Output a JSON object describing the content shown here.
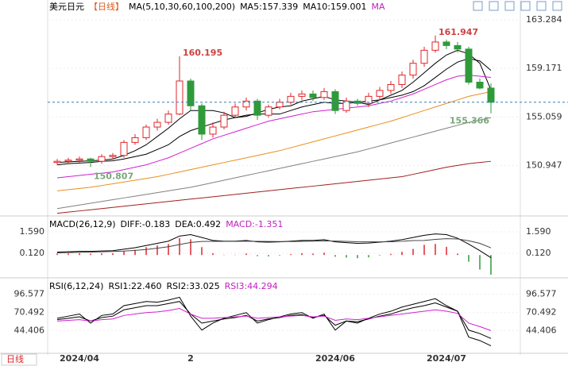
{
  "chart_data": [
    {
      "type": "candlestick",
      "legend": [
        {
          "text": "美元日元",
          "color": "#000000"
        },
        {
          "text": "【日线】",
          "color": "#e05a1a"
        },
        {
          "text": "MA(5,10,30,60,100,200)",
          "color": "#000000"
        },
        {
          "text": "MA5:157.339",
          "color": "#000000"
        },
        {
          "text": "MA10:159.001",
          "color": "#000000"
        },
        {
          "text": "MA",
          "color": "#c020c0"
        }
      ],
      "categories": [
        null,
        null,
        "2024/04",
        null,
        null,
        null,
        null,
        null,
        null,
        null,
        null,
        null,
        "2",
        null,
        null,
        null,
        null,
        null,
        null,
        null,
        null,
        null,
        null,
        null,
        null,
        "2024/06",
        null,
        null,
        null,
        null,
        null,
        null,
        null,
        null,
        null,
        "2024/07",
        null,
        null,
        null,
        null
      ],
      "open": [
        151.2,
        151.3,
        151.4,
        151.5,
        151.3,
        151.7,
        151.8,
        152.9,
        153.3,
        154.2,
        154.6,
        155.3,
        158.1,
        156.0,
        153.6,
        154.2,
        155.2,
        155.9,
        156.4,
        155.2,
        155.9,
        156.3,
        156.8,
        157.0,
        156.7,
        157.2,
        155.6,
        156.4,
        156.2,
        156.8,
        157.3,
        157.8,
        158.6,
        159.6,
        160.7,
        161.4,
        161.1,
        160.8,
        158.0,
        157.5
      ],
      "high": [
        151.5,
        151.6,
        151.7,
        151.6,
        151.9,
        152.0,
        153.1,
        153.6,
        154.4,
        154.9,
        155.6,
        160.195,
        158.3,
        156.2,
        154.6,
        155.5,
        156.2,
        156.7,
        156.6,
        156.1,
        156.6,
        157.1,
        157.3,
        157.3,
        157.5,
        157.4,
        156.7,
        156.6,
        157.1,
        157.6,
        158.1,
        158.9,
        159.9,
        161.0,
        161.947,
        161.6,
        161.4,
        161.0,
        158.3,
        157.9
      ],
      "low": [
        151.0,
        151.1,
        151.2,
        150.807,
        151.1,
        151.5,
        151.6,
        152.7,
        153.1,
        153.9,
        154.4,
        155.2,
        155.6,
        153.1,
        153.3,
        154.0,
        155.0,
        155.6,
        154.8,
        155.0,
        155.7,
        156.1,
        156.5,
        156.4,
        156.5,
        155.3,
        155.4,
        156.0,
        155.9,
        156.5,
        157.0,
        157.5,
        158.3,
        159.3,
        160.5,
        160.8,
        160.5,
        157.8,
        157.4,
        155.366
      ],
      "close": [
        151.3,
        151.4,
        151.5,
        151.3,
        151.7,
        151.8,
        152.9,
        153.3,
        154.2,
        154.6,
        155.3,
        158.1,
        156.0,
        153.6,
        154.2,
        155.2,
        155.9,
        156.4,
        155.2,
        155.9,
        156.3,
        156.8,
        157.0,
        156.7,
        157.2,
        155.6,
        156.4,
        156.2,
        156.8,
        157.3,
        157.8,
        158.6,
        159.6,
        160.7,
        161.4,
        161.1,
        160.8,
        158.0,
        157.5,
        156.3
      ],
      "up_color": "#e0262a",
      "down_color": "#2f9a3a",
      "price_line": 156.3,
      "price_line_color": "#3a7fb0",
      "series": [
        {
          "color": "#000000",
          "values": [
            151.2,
            151.25,
            151.3,
            151.35,
            151.4,
            151.5,
            151.8,
            152.2,
            152.7,
            153.4,
            154.1,
            154.9,
            155.6,
            155.6,
            155.6,
            155.4,
            155.0,
            155.1,
            155.4,
            155.7,
            155.9,
            156.0,
            156.4,
            156.6,
            156.8,
            156.5,
            156.4,
            156.3,
            156.1,
            156.5,
            156.9,
            157.3,
            158.0,
            158.8,
            159.6,
            160.3,
            160.7,
            160.4,
            159.6,
            157.339
          ]
        },
        {
          "color": "#000000",
          "values": [
            151.0,
            151.1,
            151.15,
            151.2,
            151.3,
            151.35,
            151.5,
            151.7,
            151.9,
            152.3,
            152.7,
            153.4,
            153.9,
            154.2,
            154.5,
            154.8,
            155.0,
            155.2,
            155.3,
            155.3,
            155.3,
            155.6,
            155.9,
            156.1,
            156.3,
            156.2,
            156.2,
            156.3,
            156.4,
            156.5,
            156.7,
            156.9,
            157.2,
            157.7,
            158.4,
            159.1,
            159.7,
            160.0,
            159.8,
            159.001
          ]
        },
        {
          "color": "#d020d0",
          "values": [
            149.9,
            150.0,
            150.1,
            150.2,
            150.3,
            150.4,
            150.6,
            150.8,
            151.0,
            151.3,
            151.6,
            152.0,
            152.4,
            152.8,
            153.2,
            153.5,
            153.8,
            154.1,
            154.4,
            154.7,
            154.9,
            155.1,
            155.3,
            155.5,
            155.6,
            155.7,
            155.8,
            155.9,
            156.0,
            156.2,
            156.4,
            156.7,
            157.0,
            157.4,
            157.8,
            158.2,
            158.5,
            158.6,
            158.5,
            158.4
          ]
        },
        {
          "color": "#e8901a",
          "values": [
            148.8,
            148.9,
            149.0,
            149.1,
            149.25,
            149.4,
            149.55,
            149.7,
            149.85,
            150.0,
            150.2,
            150.4,
            150.6,
            150.8,
            151.0,
            151.2,
            151.4,
            151.6,
            151.8,
            152.0,
            152.2,
            152.45,
            152.7,
            152.95,
            153.2,
            153.45,
            153.7,
            153.95,
            154.2,
            154.45,
            154.7,
            155.0,
            155.3,
            155.6,
            155.9,
            156.2,
            156.5,
            156.8,
            157.0,
            157.2
          ]
        },
        {
          "color": "#808080",
          "values": [
            147.3,
            147.45,
            147.6,
            147.75,
            147.9,
            148.05,
            148.2,
            148.35,
            148.5,
            148.65,
            148.8,
            148.95,
            149.1,
            149.3,
            149.5,
            149.7,
            149.9,
            150.1,
            150.3,
            150.5,
            150.7,
            150.9,
            151.1,
            151.3,
            151.5,
            151.7,
            151.9,
            152.1,
            152.35,
            152.6,
            152.85,
            153.1,
            153.35,
            153.6,
            153.85,
            154.1,
            154.35,
            154.6,
            154.8,
            155.0
          ]
        },
        {
          "color": "#a02020",
          "values": [
            146.9,
            147.0,
            147.1,
            147.2,
            147.3,
            147.4,
            147.5,
            147.6,
            147.7,
            147.8,
            147.9,
            148.0,
            148.1,
            148.2,
            148.3,
            148.4,
            148.5,
            148.6,
            148.7,
            148.8,
            148.9,
            149.0,
            149.1,
            149.2,
            149.3,
            149.4,
            149.5,
            149.6,
            149.7,
            149.8,
            149.9,
            150.0,
            150.2,
            150.4,
            150.6,
            150.8,
            150.95,
            151.1,
            151.2,
            151.3
          ]
        }
      ],
      "annotations": [
        {
          "value": 160.195,
          "color": "#d04040"
        },
        {
          "value": 150.807,
          "color": "#7aa67a"
        },
        {
          "value": 161.947,
          "color": "#d04040"
        },
        {
          "value": 155.366,
          "color": "#7aa67a"
        }
      ],
      "ylim": [
        146.81,
        163.88
      ],
      "yticks": [
        163.284,
        159.171,
        155.059,
        150.947
      ],
      "left_labels": false
    },
    {
      "type": "macd",
      "legend": [
        {
          "text": "MACD(26,12,9)",
          "color": "#000000"
        },
        {
          "text": "DIFF:-0.183",
          "color": "#000000"
        },
        {
          "text": "DEA:0.492",
          "color": "#000000"
        },
        {
          "text": "MACD:-1.351",
          "color": "#c020c0"
        }
      ],
      "series": [
        {
          "color": "#000000",
          "values": [
            0.2,
            0.22,
            0.25,
            0.25,
            0.28,
            0.3,
            0.4,
            0.5,
            0.65,
            0.8,
            0.95,
            1.3,
            1.4,
            1.2,
            1.0,
            0.95,
            0.95,
            1.0,
            0.9,
            0.88,
            0.9,
            0.95,
            1.0,
            1.0,
            1.05,
            0.9,
            0.85,
            0.8,
            0.82,
            0.88,
            0.95,
            1.05,
            1.2,
            1.35,
            1.45,
            1.4,
            1.15,
            0.75,
            0.3,
            -0.183
          ]
        },
        {
          "color": "#444444",
          "values": [
            0.15,
            0.17,
            0.19,
            0.2,
            0.22,
            0.24,
            0.27,
            0.32,
            0.38,
            0.47,
            0.57,
            0.72,
            0.86,
            0.93,
            0.94,
            0.94,
            0.94,
            0.95,
            0.94,
            0.93,
            0.92,
            0.92,
            0.94,
            0.95,
            0.97,
            0.96,
            0.94,
            0.91,
            0.9,
            0.9,
            0.91,
            0.94,
            0.99,
            1.0,
            1.07,
            1.12,
            1.1,
            0.98,
            0.8,
            0.492
          ]
        }
      ],
      "histogram": [
        0.1,
        0.1,
        0.12,
        0.1,
        0.12,
        0.12,
        0.26,
        0.36,
        0.54,
        0.66,
        0.76,
        1.16,
        1.08,
        0.54,
        0.12,
        0.02,
        0.02,
        0.1,
        -0.08,
        -0.1,
        -0.04,
        0.06,
        0.12,
        0.1,
        0.16,
        -0.12,
        -0.18,
        -0.22,
        -0.16,
        -0.04,
        0.08,
        0.22,
        0.42,
        0.7,
        0.76,
        0.56,
        0.1,
        -0.46,
        -1.0,
        -1.351
      ],
      "up_color": "#e0262a",
      "down_color": "#2f9a3a",
      "ylim": [
        -1.404,
        2.243
      ],
      "yticks": [
        {
          "value": 1.59,
          "label": "1.590"
        },
        {
          "value": 0.12,
          "label": "0.120"
        }
      ],
      "left_labels": true
    },
    {
      "type": "line",
      "legend": [
        {
          "text": "RSI(6,12,24)",
          "color": "#000000"
        },
        {
          "text": "RSI1:22.460",
          "color": "#000000"
        },
        {
          "text": "RSI2:33.025",
          "color": "#000000"
        },
        {
          "text": "RSI3:44.294",
          "color": "#c020c0"
        }
      ],
      "series": [
        {
          "color": "#000000",
          "values": [
            62,
            65,
            68,
            55,
            66,
            68,
            80,
            83,
            86,
            85,
            88,
            92,
            65,
            45,
            55,
            62,
            66,
            70,
            55,
            60,
            64,
            68,
            70,
            62,
            68,
            45,
            58,
            55,
            62,
            68,
            72,
            78,
            82,
            86,
            90,
            80,
            72,
            35,
            30,
            22.46
          ]
        },
        {
          "color": "#000000",
          "values": [
            60,
            62,
            64,
            58,
            63,
            65,
            74,
            77,
            80,
            80,
            83,
            86,
            68,
            55,
            58,
            61,
            63,
            66,
            58,
            61,
            63,
            66,
            67,
            63,
            66,
            52,
            58,
            57,
            61,
            65,
            68,
            73,
            77,
            80,
            84,
            78,
            72,
            45,
            40,
            33.025
          ]
        },
        {
          "color": "#d020d0",
          "values": [
            58,
            59,
            60,
            58,
            60,
            61,
            66,
            68,
            70,
            71,
            73,
            76,
            68,
            62,
            62,
            63,
            64,
            65,
            62,
            63,
            64,
            65,
            66,
            64,
            65,
            59,
            61,
            60,
            62,
            64,
            66,
            68,
            70,
            72,
            74,
            72,
            69,
            55,
            50,
            44.294
          ]
        }
      ],
      "ylim": [
        12.9,
        110.7
      ],
      "yticks": [
        96.577,
        70.492,
        44.406
      ],
      "left_labels": true
    }
  ],
  "footer_tab": "日线"
}
